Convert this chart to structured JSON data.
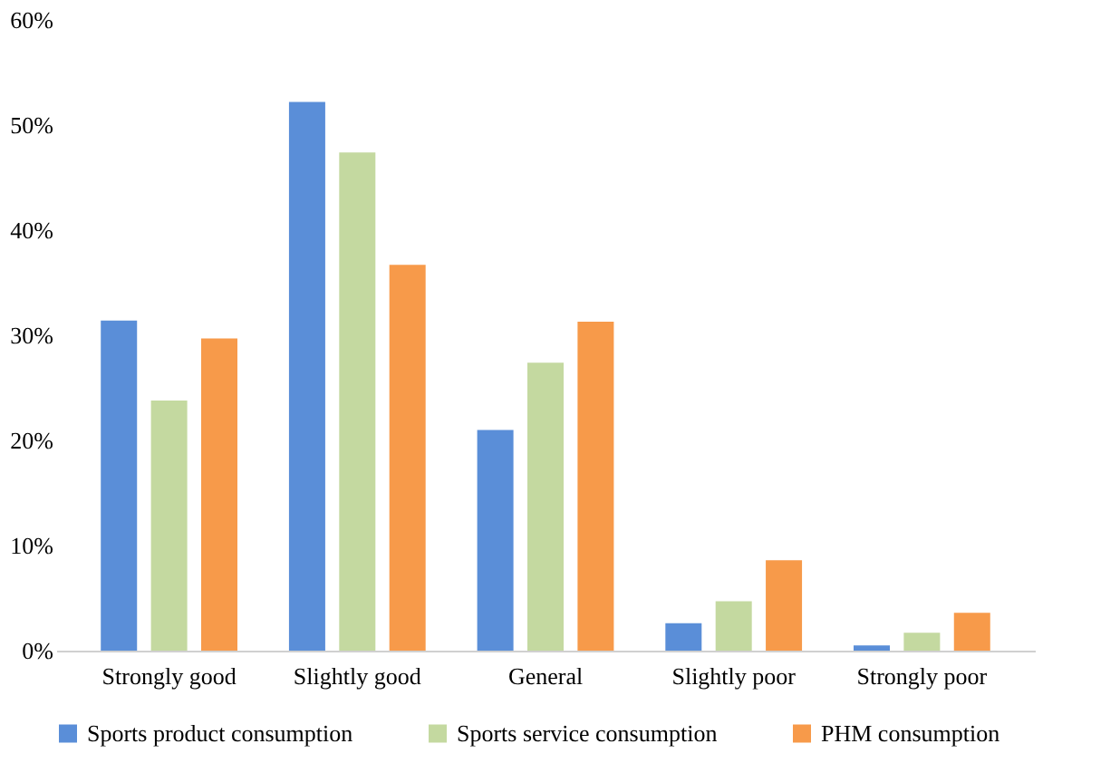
{
  "chart_data": {
    "type": "bar",
    "categories": [
      "Strongly good",
      "Slightly good",
      "General",
      "Slightly poor",
      "Strongly poor"
    ],
    "series": [
      {
        "name": "Sports product consumption",
        "color": "#5a8ed8",
        "values": [
          31.4,
          52.2,
          21.0,
          2.6,
          0.5
        ]
      },
      {
        "name": "Sports service consumption",
        "color": "#c4d9a0",
        "values": [
          23.8,
          47.4,
          27.4,
          4.7,
          1.7
        ]
      },
      {
        "name": "PHM consumption",
        "color": "#f79a4a",
        "values": [
          29.7,
          36.7,
          31.3,
          8.6,
          3.6
        ]
      }
    ],
    "ylim": [
      0,
      60
    ],
    "yticks": [
      {
        "value": 0,
        "label": "0%"
      },
      {
        "value": 10,
        "label": "10%"
      },
      {
        "value": 20,
        "label": "20%"
      },
      {
        "value": 30,
        "label": "30%"
      },
      {
        "value": 40,
        "label": "40%"
      },
      {
        "value": 50,
        "label": "50%"
      },
      {
        "value": 60,
        "label": "60%"
      }
    ],
    "grid": false,
    "legend": "bottom"
  }
}
